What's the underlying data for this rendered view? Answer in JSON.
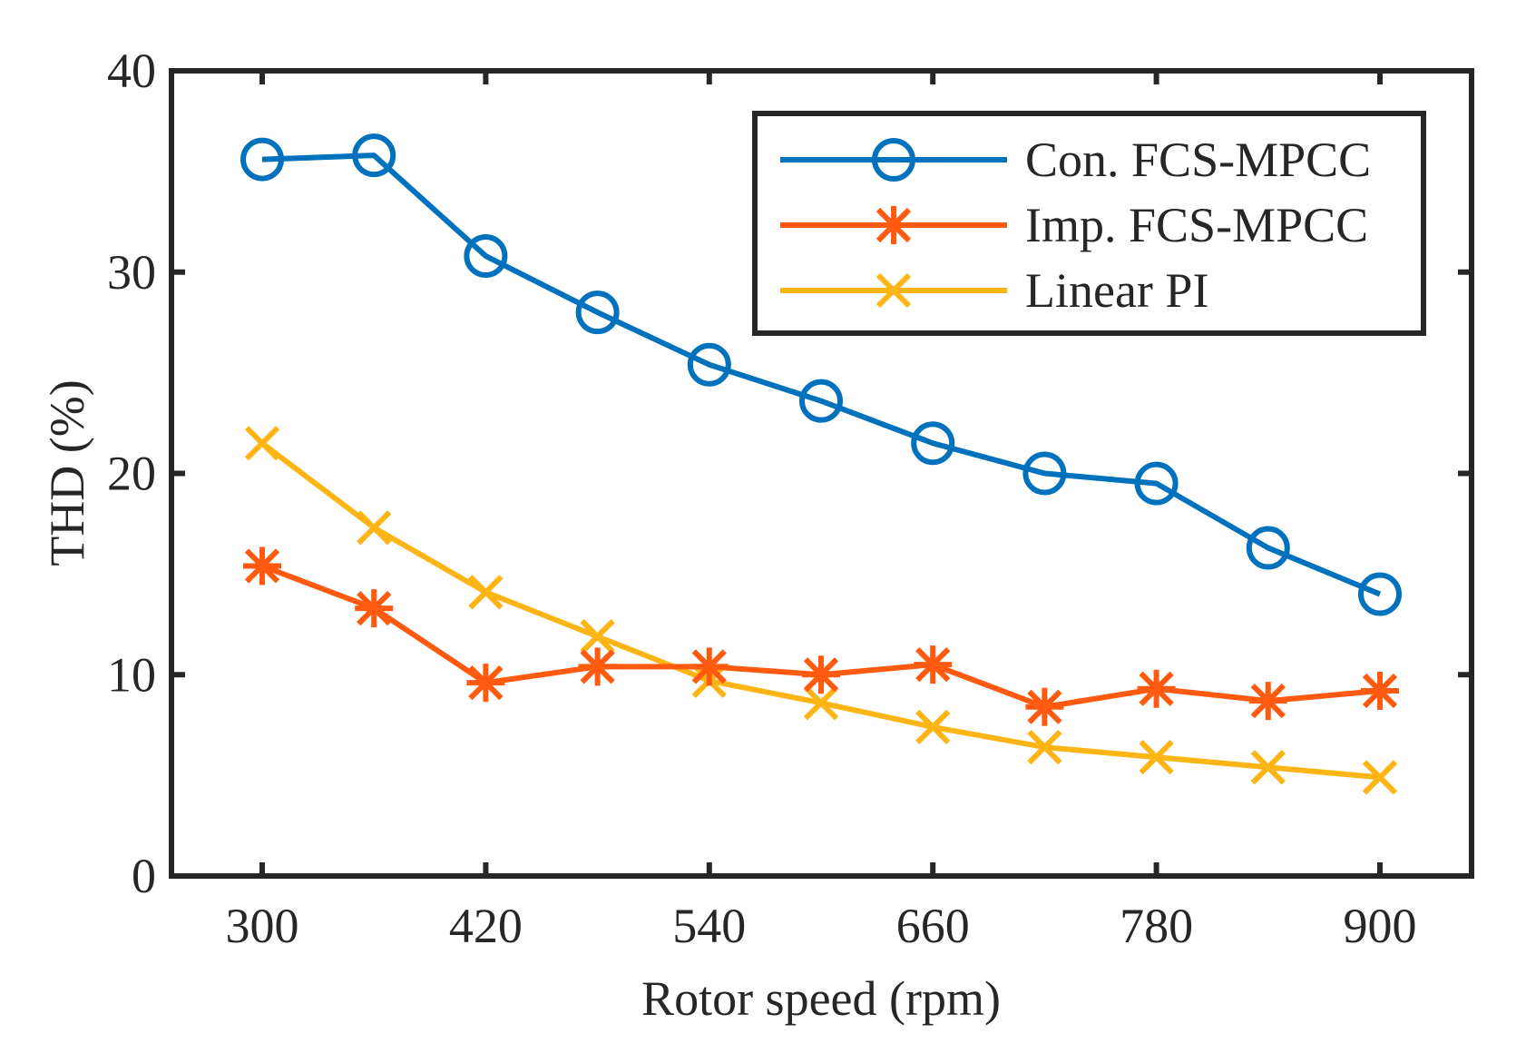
{
  "chart_data": {
    "type": "line",
    "title": "",
    "xlabel": "Rotor speed (rpm)",
    "ylabel": "THD (%)",
    "xlim": [
      260,
      940
    ],
    "ylim": [
      0,
      40
    ],
    "xticks": [
      300,
      420,
      540,
      660,
      780,
      900
    ],
    "yticks": [
      0,
      10,
      20,
      30,
      40
    ],
    "grid": false,
    "legend_position": "top-right",
    "x": [
      300,
      360,
      420,
      480,
      540,
      600,
      660,
      720,
      780,
      840,
      900
    ],
    "series": [
      {
        "name": "Con. FCS-MPCC",
        "color": "#0072BD",
        "marker": "circle",
        "values": [
          35.6,
          35.8,
          30.8,
          28.0,
          25.4,
          23.6,
          21.5,
          20.0,
          19.5,
          16.3,
          14.0
        ]
      },
      {
        "name": "Imp. FCS-MPCC",
        "color": "#FF5A0F",
        "marker": "asterisk",
        "values": [
          15.4,
          13.3,
          9.6,
          10.4,
          10.4,
          10.0,
          10.5,
          8.4,
          9.3,
          8.7,
          9.2
        ]
      },
      {
        "name": "Linear PI",
        "color": "#FDB515",
        "marker": "x",
        "values": [
          21.5,
          17.3,
          14.1,
          11.9,
          9.7,
          8.6,
          7.4,
          6.4,
          5.9,
          5.4,
          4.9
        ]
      }
    ]
  }
}
